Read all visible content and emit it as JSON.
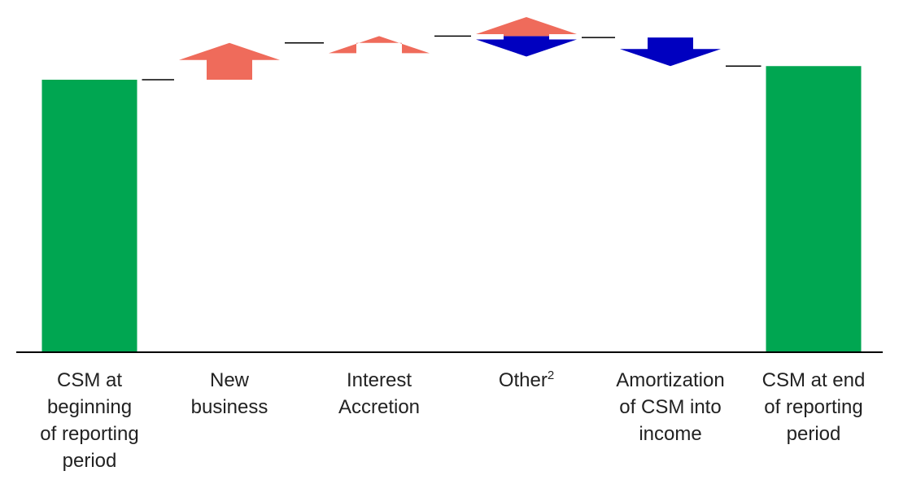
{
  "chart_data": {
    "type": "waterfall",
    "categories": [
      {
        "lines": [
          "CSM at",
          "beginning",
          "of reporting",
          "period"
        ],
        "kind": "total"
      },
      {
        "lines": [
          "New",
          "business"
        ],
        "kind": "increase"
      },
      {
        "lines": [
          "Interest",
          "Accretion"
        ],
        "kind": "increase"
      },
      {
        "lines": [
          "Other"
        ],
        "superscript": "2",
        "kind": "mixed"
      },
      {
        "lines": [
          "Amortization",
          "of CSM into",
          "income"
        ],
        "kind": "decrease"
      },
      {
        "lines": [
          "CSM at end",
          "of reporting",
          "period"
        ],
        "kind": "total"
      }
    ],
    "values": [
      100,
      13.5,
      2.5,
      -0.5,
      -10.5,
      105
    ],
    "mixed_components": {
      "increase": 7,
      "decrease": -7.5
    },
    "ylim": [
      0,
      110
    ],
    "grid": false,
    "legend": "none",
    "colors": {
      "total": "#00A651",
      "increase": "#EF6B5B",
      "decrease": "#0000C0",
      "connector": "#000000",
      "baseline": "#000000",
      "label": "#222222"
    }
  }
}
